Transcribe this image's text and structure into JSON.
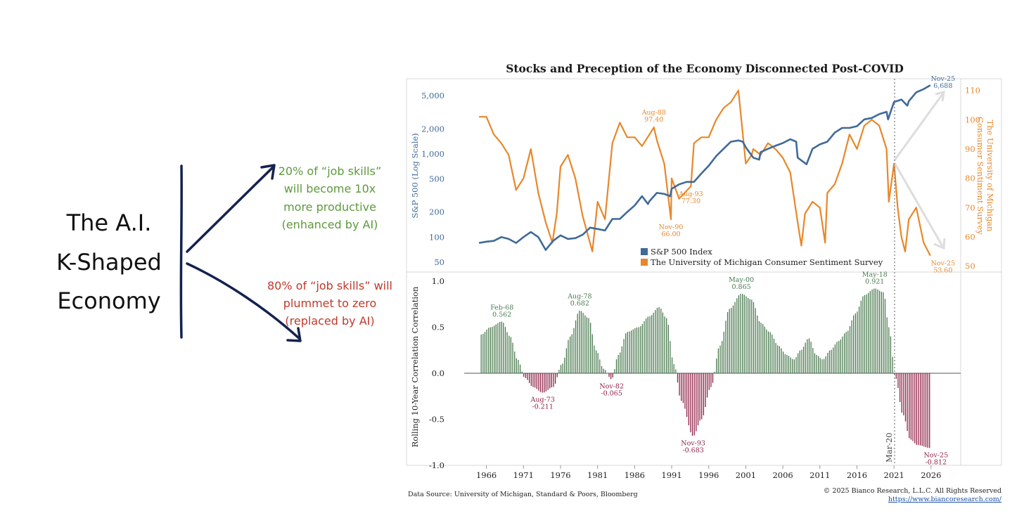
{
  "diagram": {
    "label_lines": [
      "The A.I.",
      "K-Shaped",
      "Economy"
    ],
    "up_text_lines": [
      "20% of “job skills”",
      "will become 10x",
      "more productive",
      "(enhanced by AI)"
    ],
    "down_text_lines": [
      "80% of “job skills” will",
      "plummet to zero",
      "(replaced by AI)"
    ],
    "colors": {
      "ink": "#14224f",
      "up": "#5c9a3c",
      "down": "#c0392b"
    }
  },
  "chart": {
    "title": "Stocks and Preception of the Economy Disconnected Post-COVID",
    "source": "Data Source: University of Michigan, Standard & Poors, Bloomberg",
    "copyright": "© 2025 Bianco Research, L.L.C. All Rights Reserved",
    "url": "https://www.biancoresearch.com/",
    "marker_label": "Mar-20"
  },
  "chart_data": [
    {
      "type": "line",
      "ylabel_left": "S&P 500 (Log Scale)",
      "ylabel_right": "The University of Michigan Consumer Sentiment Survey",
      "left_scale": "log",
      "left_ticks": [
        50,
        100,
        200,
        500,
        1000,
        2000,
        5000
      ],
      "left_tick_labels": [
        "50",
        "100",
        "200",
        "500",
        "1,000",
        "2,000",
        "5,000"
      ],
      "ylim_left": [
        38,
        8000
      ],
      "right_ticks": [
        50,
        60,
        70,
        80,
        90,
        100,
        110
      ],
      "ylim_right": [
        48,
        114
      ],
      "xlim": [
        1963,
        2030
      ],
      "legend": [
        "S&P 500 Index",
        "The University of Michigan Consumer Sentiment Survey"
      ],
      "legend_placement": "bottom-center",
      "colors": {
        "sp500": "#3f6a99",
        "sentiment": "#e8872a"
      },
      "series": [
        {
          "name": "S&P 500 Index",
          "x": [
            1965,
            1966,
            1967,
            1968,
            1969,
            1970,
            1971,
            1972,
            1973,
            1974,
            1975,
            1976,
            1977,
            1978,
            1979,
            1980,
            1981,
            1982,
            1983,
            1984,
            1985,
            1986,
            1987,
            1987.8,
            1988,
            1989,
            1990,
            1990.8,
            1991,
            1992,
            1993,
            1994,
            1995,
            1996,
            1997,
            1998,
            1999,
            2000,
            2000.6,
            2001,
            2002,
            2002.8,
            2003,
            2004,
            2005,
            2006,
            2007,
            2007.8,
            2008,
            2009.2,
            2010,
            2011,
            2012,
            2013,
            2014,
            2015,
            2016,
            2017,
            2018,
            2019,
            2020,
            2020.2,
            2021,
            2022,
            2022.8,
            2023,
            2024,
            2025,
            2025.9
          ],
          "values": [
            85,
            88,
            90,
            100,
            95,
            85,
            100,
            115,
            100,
            70,
            90,
            105,
            95,
            97,
            107,
            130,
            125,
            120,
            165,
            165,
            200,
            240,
            310,
            250,
            270,
            340,
            330,
            310,
            380,
            430,
            460,
            460,
            580,
            720,
            940,
            1150,
            1400,
            1450,
            1400,
            1200,
            900,
            850,
            1050,
            1150,
            1250,
            1350,
            1500,
            1400,
            900,
            750,
            1150,
            1300,
            1400,
            1800,
            2050,
            2050,
            2150,
            2600,
            2700,
            3000,
            3200,
            2600,
            4200,
            4500,
            3800,
            4300,
            5500,
            6000,
            6688
          ]
        },
        {
          "name": "The University of Michigan Consumer Sentiment Survey",
          "x": [
            1965,
            1966,
            1967,
            1968,
            1969,
            1970,
            1971,
            1972,
            1973,
            1974,
            1974.9,
            1975.5,
            1976,
            1977,
            1978,
            1979,
            1980.3,
            1981,
            1982,
            1983,
            1984,
            1985,
            1986,
            1987,
            1988.6,
            1989,
            1990,
            1990.9,
            1991,
            1992,
            1993.6,
            1994,
            1995,
            1996,
            1997,
            1998,
            1999,
            2000,
            2001,
            2001.8,
            2002,
            2003,
            2004,
            2005,
            2006,
            2007,
            2008,
            2008.5,
            2009,
            2010,
            2011,
            2011.7,
            2012,
            2013,
            2014,
            2015,
            2016,
            2017,
            2018,
            2019,
            2020,
            2020.3,
            2021,
            2021.5,
            2022,
            2022.5,
            2023,
            2024,
            2025,
            2025.9
          ],
          "values": [
            101,
            101,
            95,
            92,
            88,
            76,
            80,
            90,
            75,
            65,
            58,
            68,
            84,
            88,
            80,
            67,
            55,
            72,
            66,
            92,
            99,
            94,
            94,
            91,
            97.4,
            93,
            85,
            66,
            80,
            73,
            77.3,
            92,
            94,
            94,
            100,
            104,
            106,
            110,
            85,
            88,
            90,
            88,
            92,
            90,
            87,
            82,
            65,
            57,
            68,
            72,
            70,
            58,
            75,
            78,
            85,
            95,
            90,
            98,
            100,
            98,
            90,
            72,
            85,
            70,
            60,
            55,
            66,
            70,
            58,
            53.6
          ]
        }
      ],
      "annotations": [
        {
          "text": "Aug-88",
          "value": "97.40",
          "x": 1988.6,
          "y": 97.4,
          "series": "The University of Michigan Consumer Sentiment Survey"
        },
        {
          "text": "Aug-93",
          "value": "77.30",
          "x": 1993.6,
          "y": 77.3,
          "series": "The University of Michigan Consumer Sentiment Survey"
        },
        {
          "text": "Nov-90",
          "value": "66.00",
          "x": 1990.9,
          "y": 66.0,
          "series": "The University of Michigan Consumer Sentiment Survey"
        },
        {
          "text": "Nov-25",
          "value": "53.60",
          "x": 2025.9,
          "y": 53.6,
          "series": "The University of Michigan Consumer Sentiment Survey"
        },
        {
          "text": "Nov-25",
          "value": "6,688",
          "x": 2025.9,
          "y": 6688,
          "series": "S&P 500 Index"
        }
      ]
    },
    {
      "type": "bar",
      "ylabel": "Rolling 10-Year Correlation Correlation",
      "ylim": [
        -1.0,
        1.1
      ],
      "yticks": [
        -1.0,
        -0.5,
        0.0,
        0.5,
        1.0
      ],
      "ytick_labels": [
        "-1.0",
        "-0.5",
        "0.0",
        "0.5",
        "1.0"
      ],
      "xlim": [
        1963,
        2030
      ],
      "xticks": [
        1966,
        1971,
        1976,
        1981,
        1986,
        1991,
        1996,
        2001,
        2006,
        2011,
        2016,
        2021,
        2026
      ],
      "xtick_labels": [
        "1966",
        "1971",
        "1976",
        "1981",
        "1986",
        "1991",
        "1996",
        "2001",
        "2006",
        "2011",
        "2016",
        "2021",
        "2026"
      ],
      "colors": {
        "positive": "#4a7a4f",
        "negative": "#8e2145"
      },
      "series": [
        {
          "name": "Rolling 10-Year Correlation",
          "x": [
            1965.3,
            1966.5,
            1968.1,
            1969.2,
            1970.2,
            1971.2,
            1972.3,
            1973.6,
            1975,
            1976.2,
            1977.3,
            1978.6,
            1979.8,
            1980.8,
            1981.8,
            1982.9,
            1983.8,
            1985,
            1986.5,
            1988,
            1989.3,
            1990.3,
            1991.3,
            1992.3,
            1993.9,
            1995,
            1996.3,
            1997.5,
            1998.8,
            2000.4,
            2001.8,
            2003,
            2004.2,
            2005.4,
            2006.5,
            2007.5,
            2008.4,
            2009.5,
            2010.5,
            2011.4,
            2012.4,
            2013.5,
            2014.6,
            2015.8,
            2017,
            2018.4,
            2019.6,
            2020.3,
            2021.2,
            2022.2,
            2023.2,
            2024.2,
            2025.9
          ],
          "values": [
            0.42,
            0.5,
            0.562,
            0.4,
            0.15,
            -0.05,
            -0.15,
            -0.211,
            -0.15,
            0.1,
            0.4,
            0.682,
            0.6,
            0.25,
            0.05,
            -0.065,
            0.2,
            0.45,
            0.5,
            0.62,
            0.72,
            0.6,
            0.1,
            -0.3,
            -0.683,
            -0.5,
            -0.15,
            0.3,
            0.7,
            0.865,
            0.8,
            0.55,
            0.45,
            0.3,
            0.2,
            0.15,
            0.25,
            0.38,
            0.2,
            0.15,
            0.25,
            0.35,
            0.45,
            0.65,
            0.85,
            0.921,
            0.88,
            0.5,
            -0.05,
            -0.45,
            -0.72,
            -0.78,
            -0.812
          ]
        }
      ],
      "annotations": [
        {
          "text": "Feb-68",
          "value": "0.562",
          "x": 1968.1,
          "y": 0.562
        },
        {
          "text": "Aug-73",
          "value": "-0.211",
          "x": 1973.6,
          "y": -0.211
        },
        {
          "text": "Aug-78",
          "value": "0.682",
          "x": 1978.6,
          "y": 0.682
        },
        {
          "text": "Nov-82",
          "value": "-0.065",
          "x": 1982.9,
          "y": -0.065
        },
        {
          "text": "Nov-93",
          "value": "-0.683",
          "x": 1993.9,
          "y": -0.683
        },
        {
          "text": "May-00",
          "value": "0.865",
          "x": 2000.4,
          "y": 0.865
        },
        {
          "text": "May-18",
          "value": "0.921",
          "x": 2018.4,
          "y": 0.921
        },
        {
          "text": "Nov-25",
          "value": "-0.812",
          "x": 2025.9,
          "y": -0.812
        }
      ]
    }
  ]
}
